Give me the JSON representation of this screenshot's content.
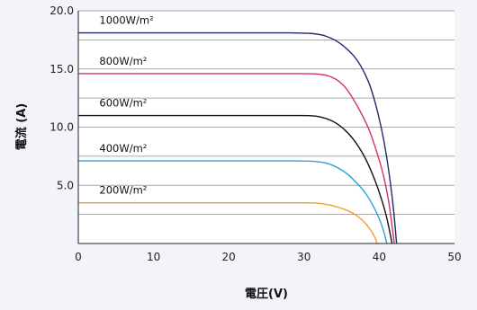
{
  "chart_data": {
    "type": "line",
    "title": "",
    "xlabel": "電圧(V)",
    "ylabel": "電流 (A)",
    "xlim": [
      0,
      50
    ],
    "ylim": [
      0,
      20
    ],
    "x_ticks": [
      "0",
      "10",
      "20",
      "30",
      "40",
      "50"
    ],
    "y_ticks": [
      "5.0",
      "10.0",
      "15.0",
      "20.0"
    ],
    "y_tick_values": [
      5,
      10,
      15,
      20
    ],
    "grid": "horizontal",
    "series": [
      {
        "name": "1000W/m²",
        "color": "#1f2a6b",
        "points": [
          [
            0,
            18.1
          ],
          [
            10,
            18.1
          ],
          [
            20,
            18.1
          ],
          [
            28,
            18.1
          ],
          [
            31,
            18.05
          ],
          [
            33,
            17.8
          ],
          [
            35,
            17.1
          ],
          [
            37,
            15.8
          ],
          [
            38.5,
            14.0
          ],
          [
            39.5,
            12.0
          ],
          [
            40.5,
            9.2
          ],
          [
            41.2,
            6.5
          ],
          [
            41.8,
            3.5
          ],
          [
            42.1,
            1.5
          ],
          [
            42.3,
            0
          ]
        ]
      },
      {
        "name": "800W/m²",
        "color": "#d6306e",
        "points": [
          [
            0,
            14.6
          ],
          [
            10,
            14.6
          ],
          [
            20,
            14.6
          ],
          [
            28,
            14.6
          ],
          [
            32,
            14.55
          ],
          [
            34,
            14.2
          ],
          [
            35.5,
            13.4
          ],
          [
            37,
            11.9
          ],
          [
            38.5,
            10.0
          ],
          [
            39.5,
            8.2
          ],
          [
            40.5,
            6.0
          ],
          [
            41.2,
            3.8
          ],
          [
            41.6,
            2.0
          ],
          [
            42,
            0
          ]
        ]
      },
      {
        "name": "600W/m²",
        "color": "#111111",
        "points": [
          [
            0,
            11.0
          ],
          [
            10,
            11.0
          ],
          [
            20,
            11.0
          ],
          [
            28,
            11.0
          ],
          [
            31.5,
            10.95
          ],
          [
            33.5,
            10.6
          ],
          [
            35,
            10.0
          ],
          [
            36.5,
            9.0
          ],
          [
            38,
            7.5
          ],
          [
            39.2,
            5.8
          ],
          [
            40.2,
            4.0
          ],
          [
            41,
            2.2
          ],
          [
            41.7,
            0
          ]
        ]
      },
      {
        "name": "400W/m²",
        "color": "#2ea3d8",
        "points": [
          [
            0,
            7.1
          ],
          [
            10,
            7.1
          ],
          [
            20,
            7.1
          ],
          [
            28,
            7.1
          ],
          [
            31.5,
            7.05
          ],
          [
            33.5,
            6.8
          ],
          [
            35.5,
            6.1
          ],
          [
            37,
            5.2
          ],
          [
            38.3,
            4.2
          ],
          [
            39.3,
            3.1
          ],
          [
            40.2,
            1.8
          ],
          [
            40.7,
            0.8
          ],
          [
            41,
            0
          ]
        ]
      },
      {
        "name": "200W/m²",
        "color": "#f0a030",
        "points": [
          [
            0,
            3.5
          ],
          [
            10,
            3.5
          ],
          [
            20,
            3.5
          ],
          [
            28,
            3.5
          ],
          [
            31.5,
            3.48
          ],
          [
            33.5,
            3.3
          ],
          [
            35.5,
            2.9
          ],
          [
            37,
            2.4
          ],
          [
            38.2,
            1.7
          ],
          [
            39,
            1.0
          ],
          [
            39.5,
            0.4
          ],
          [
            39.7,
            0
          ]
        ]
      }
    ]
  }
}
